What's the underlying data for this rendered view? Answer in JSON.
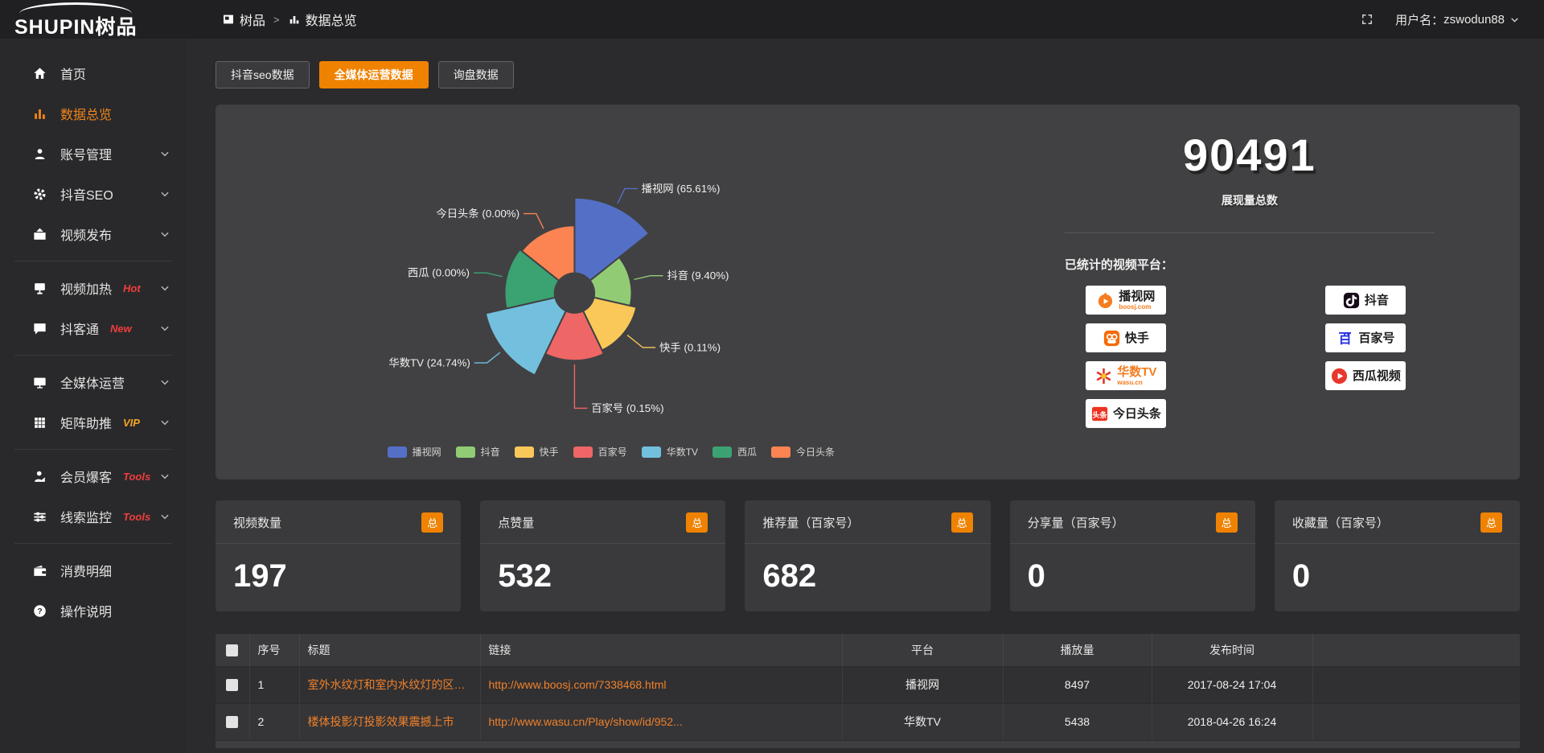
{
  "topbar": {
    "logo": "SHUPIN树品",
    "breadcrumb_root": "树品",
    "breadcrumb_sep": ">",
    "breadcrumb_current": "数据总览",
    "username_label": "用户名：",
    "username": "zswodun88"
  },
  "accent_color": "#ef8201",
  "sidebar": {
    "items": [
      {
        "label": "首页",
        "icon": "home-icon",
        "chevron": false,
        "active": false,
        "badge": ""
      },
      {
        "label": "数据总览",
        "icon": "bar-chart-icon",
        "chevron": false,
        "active": true,
        "badge": ""
      },
      {
        "label": "账号管理",
        "icon": "user-icon",
        "chevron": true,
        "active": false,
        "badge": ""
      },
      {
        "label": "抖音SEO",
        "icon": "gear-icon",
        "chevron": true,
        "active": false,
        "badge": ""
      },
      {
        "label": "视频发布",
        "icon": "upload-video-icon",
        "chevron": true,
        "active": false,
        "badge": ""
      },
      {
        "divider": true
      },
      {
        "label": "视频加热",
        "icon": "screen-hot-icon",
        "chevron": true,
        "active": false,
        "badge": "Hot",
        "badge_color": "#f23c3c"
      },
      {
        "label": "抖客通",
        "icon": "chat-icon",
        "chevron": true,
        "active": false,
        "badge": "New",
        "badge_color": "#f23c3c"
      },
      {
        "divider": true
      },
      {
        "label": "全媒体运营",
        "icon": "monitor-icon",
        "chevron": true,
        "active": false,
        "badge": ""
      },
      {
        "label": "矩阵助推",
        "icon": "grid-icon",
        "chevron": true,
        "active": false,
        "badge": "VIP",
        "badge_color": "#f5a623"
      },
      {
        "divider": true
      },
      {
        "label": "会员爆客",
        "icon": "person-icon",
        "chevron": true,
        "active": false,
        "badge": "Tools",
        "badge_color": "#f23c3c"
      },
      {
        "label": "线索监控",
        "icon": "sliders-icon",
        "chevron": true,
        "active": false,
        "badge": "Tools",
        "badge_color": "#f23c3c"
      },
      {
        "divider": true
      },
      {
        "label": "消费明细",
        "icon": "wallet-icon",
        "chevron": false,
        "active": false,
        "badge": ""
      },
      {
        "label": "操作说明",
        "icon": "help-icon",
        "chevron": false,
        "active": false,
        "badge": ""
      }
    ]
  },
  "tabs": [
    {
      "label": "抖音seo数据",
      "active": false
    },
    {
      "label": "全媒体运营数据",
      "active": true
    },
    {
      "label": "询盘数据",
      "active": false
    }
  ],
  "chart_data": {
    "type": "pie",
    "variant": "nightingale-rose",
    "categories": [
      "播视网",
      "抖音",
      "快手",
      "百家号",
      "华数TV",
      "西瓜",
      "今日头条"
    ],
    "values_percent": [
      65.61,
      9.4,
      0.11,
      0.15,
      24.74,
      0.0,
      0.0
    ],
    "colors": [
      "#5470c6",
      "#91cc75",
      "#fac858",
      "#ee6666",
      "#73c0de",
      "#3ba272",
      "#fc8452"
    ],
    "legend": [
      "播视网",
      "抖音",
      "快手",
      "百家号",
      "华数TV",
      "西瓜",
      "今日头条"
    ],
    "legend_position": "bottom",
    "label_format": "{name} ({percent}%)",
    "start_angle_deg": 0,
    "direction": "clockwise",
    "inner_radius": 25,
    "slice_outer_radii": [
      120,
      72,
      80,
      85,
      115,
      88,
      85
    ],
    "leader_ext": [
      26,
      26,
      30,
      60,
      26,
      26,
      26
    ]
  },
  "summary": {
    "total_value": "90491",
    "total_label": "展现量总数",
    "platforms_title": "已统计的视频平台：",
    "platforms_left": [
      {
        "name": "播视网",
        "sub": "boosj.com",
        "icon": "boosj-logo",
        "brand_color": "#f57c1f",
        "name_color": "#1d1d1f"
      },
      {
        "name": "快手",
        "sub": "",
        "icon": "kuaishou-logo",
        "brand_color": "#f56a07",
        "name_color": "#1d1d1f"
      },
      {
        "name": "华数TV",
        "sub": "wasu.cn",
        "icon": "wasu-logo",
        "brand_color": "#e63022",
        "name_color": "#f57c1f"
      },
      {
        "name": "今日头条",
        "sub": "",
        "icon": "toutiao-logo",
        "brand_color": "#ed3321",
        "name_color": "#1d1d1f"
      }
    ],
    "platforms_right": [
      {
        "name": "抖音",
        "sub": "",
        "icon": "douyin-logo",
        "brand_color": "#170b1a",
        "name_color": "#1d1d1f"
      },
      {
        "name": "百家号",
        "sub": "",
        "icon": "baijiahao-logo",
        "brand_color": "#2932e1",
        "name_color": "#1d1d1f"
      },
      {
        "name": "西瓜视频",
        "sub": "",
        "icon": "xigua-logo",
        "brand_color": "#e8372c",
        "name_color": "#1d1d1f"
      }
    ]
  },
  "stat_cards": [
    {
      "title": "视频数量",
      "badge": "总",
      "value": "197"
    },
    {
      "title": "点赞量",
      "badge": "总",
      "value": "532"
    },
    {
      "title": "推荐量（百家号）",
      "badge": "总",
      "value": "682"
    },
    {
      "title": "分享量（百家号）",
      "badge": "总",
      "value": "0"
    },
    {
      "title": "收藏量（百家号）",
      "badge": "总",
      "value": "0"
    }
  ],
  "table": {
    "headers": [
      "序号",
      "标题",
      "链接",
      "平台",
      "播放量",
      "发布时间"
    ],
    "rows": [
      {
        "index": "1",
        "title": "室外水纹灯和室内水纹灯的区别和简介",
        "link": "http://www.boosj.com/7338468.html",
        "platform": "播视网",
        "views": "8497",
        "time": "2017-08-24 17:04"
      },
      {
        "index": "2",
        "title": "楼体投影灯投影效果震撼上市",
        "link": "http://www.wasu.cn/Play/show/id/952...",
        "platform": "华数TV",
        "views": "5438",
        "time": "2018-04-26 16:24"
      }
    ]
  }
}
